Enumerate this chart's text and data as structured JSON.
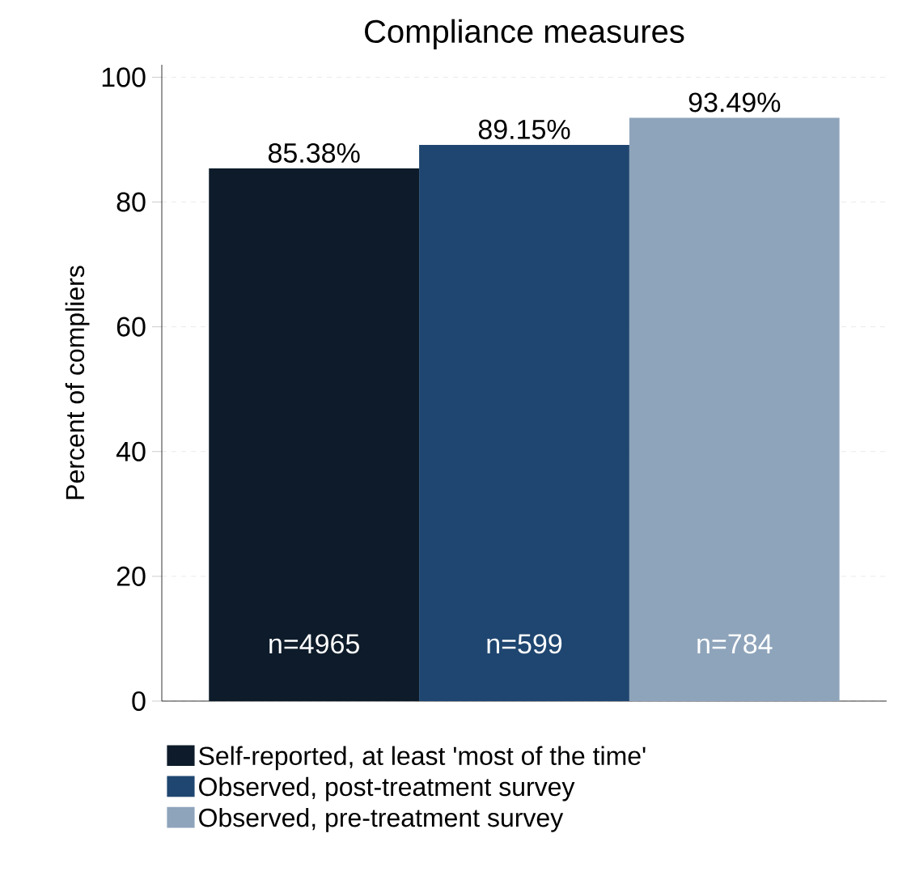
{
  "chart_data": {
    "type": "bar",
    "title": "Compliance measures",
    "ylabel": "Percent of compliers",
    "categories": [
      null
    ],
    "series": [
      {
        "name": "Self-reported, at least 'most of the time'",
        "color": "#0d1b2a",
        "values": [
          85.38
        ],
        "value_labels": [
          "85.38%"
        ]
      },
      {
        "name": "Observed, post-treatment survey",
        "color": "#1f4670",
        "values": [
          89.15
        ],
        "value_labels": [
          "89.15%"
        ]
      },
      {
        "name": "Observed, pre-treatment survey",
        "color": "#8ea4bb",
        "values": [
          93.49
        ],
        "value_labels": [
          "93.49%"
        ]
      }
    ],
    "annotations": [
      "n=4965",
      "n=599",
      "n=784"
    ],
    "ylim": [
      0,
      102
    ],
    "yticks": [
      0,
      20,
      40,
      60,
      80,
      100
    ],
    "grid": "y",
    "legend": "bottom",
    "tick_labels": "y"
  }
}
